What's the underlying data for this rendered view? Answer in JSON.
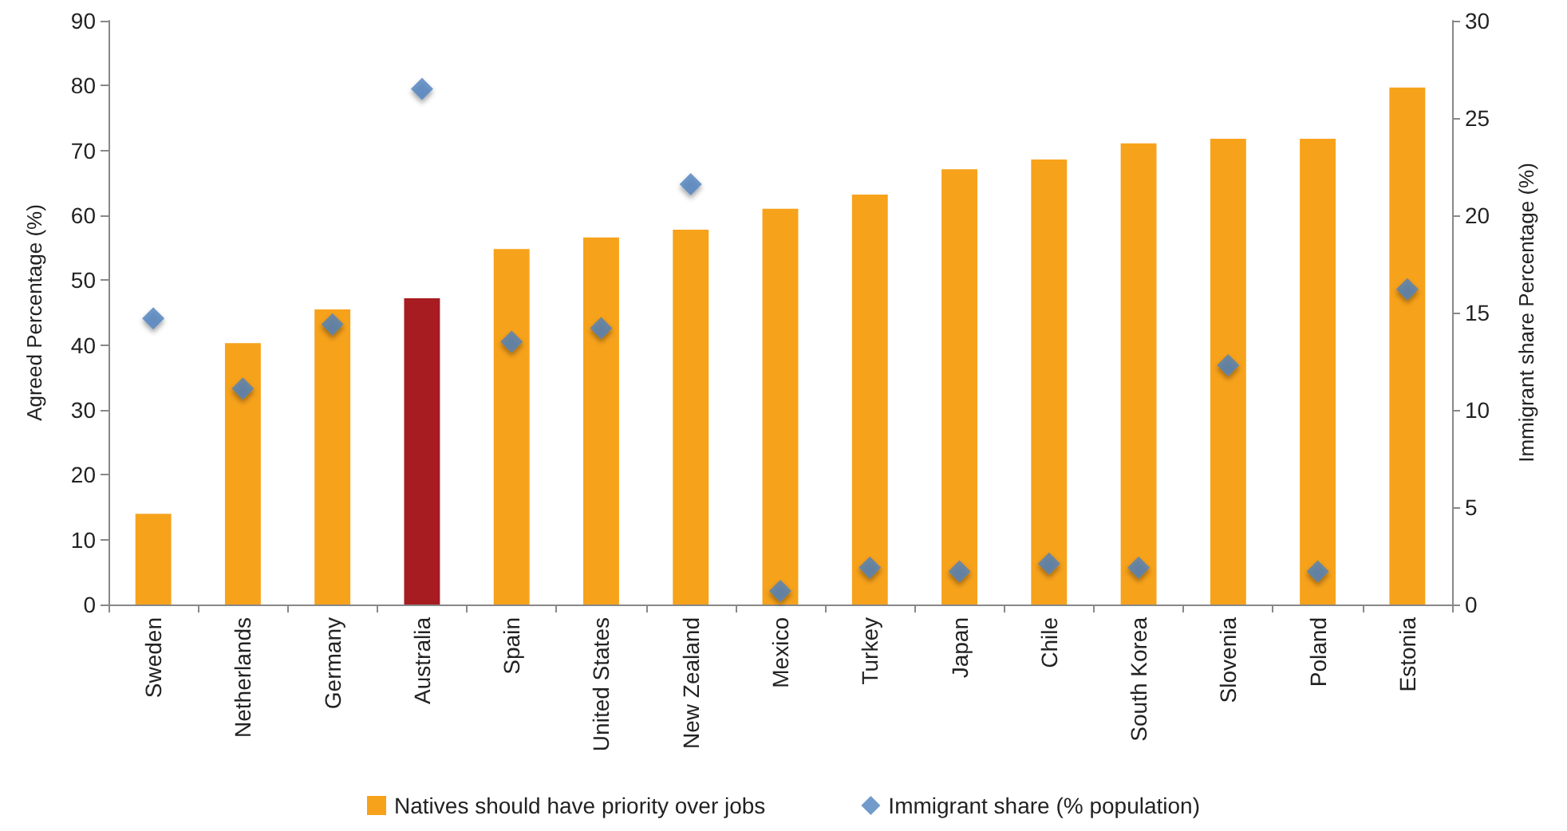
{
  "chart_data": {
    "type": "bar",
    "ylabel": "Agreed Percentage (%)",
    "y2label": "Immigrant share Percentage (%)",
    "categories": [
      "Sweden",
      "Netherlands",
      "Germany",
      "Australia",
      "Spain",
      "United States",
      "New Zealand",
      "Mexico",
      "Turkey",
      "Japan",
      "Chile",
      "South Korea",
      "Slovenia",
      "Poland",
      "Estonia"
    ],
    "series": [
      {
        "name": "Natives should have priority over jobs",
        "color": "#f7a21b",
        "colors": [
          "#f7a21b",
          "#f7a21b",
          "#f7a21b",
          "#a61c21",
          "#f7a21b",
          "#f7a21b",
          "#f7a21b",
          "#f7a21b",
          "#f7a21b",
          "#f7a21b",
          "#f7a21b",
          "#f7a21b",
          "#f7a21b",
          "#f7a21b",
          "#f7a21b"
        ],
        "values": [
          14,
          40.3,
          45.5,
          47.2,
          54.8,
          56.6,
          57.8,
          61,
          63.2,
          67.1,
          68.6,
          71.1,
          71.8,
          71.8,
          79.7
        ]
      },
      {
        "name": "Immigrant share (% population)",
        "type": "scatter",
        "axis": "y2",
        "color": "#4f81bd",
        "values": [
          14.7,
          11.1,
          14.4,
          26.5,
          13.5,
          14.2,
          21.6,
          0.7,
          1.9,
          1.7,
          2.1,
          1.9,
          12.3,
          1.7,
          16.2
        ]
      }
    ],
    "ylim": [
      0,
      90
    ],
    "yticks": [
      0,
      10,
      20,
      30,
      40,
      50,
      60,
      70,
      80,
      90
    ],
    "y2lim": [
      0,
      30
    ],
    "y2ticks": [
      0,
      5,
      10,
      15,
      20,
      25,
      30
    ],
    "grid": false,
    "legend": "bottom",
    "marker": "diamond"
  }
}
